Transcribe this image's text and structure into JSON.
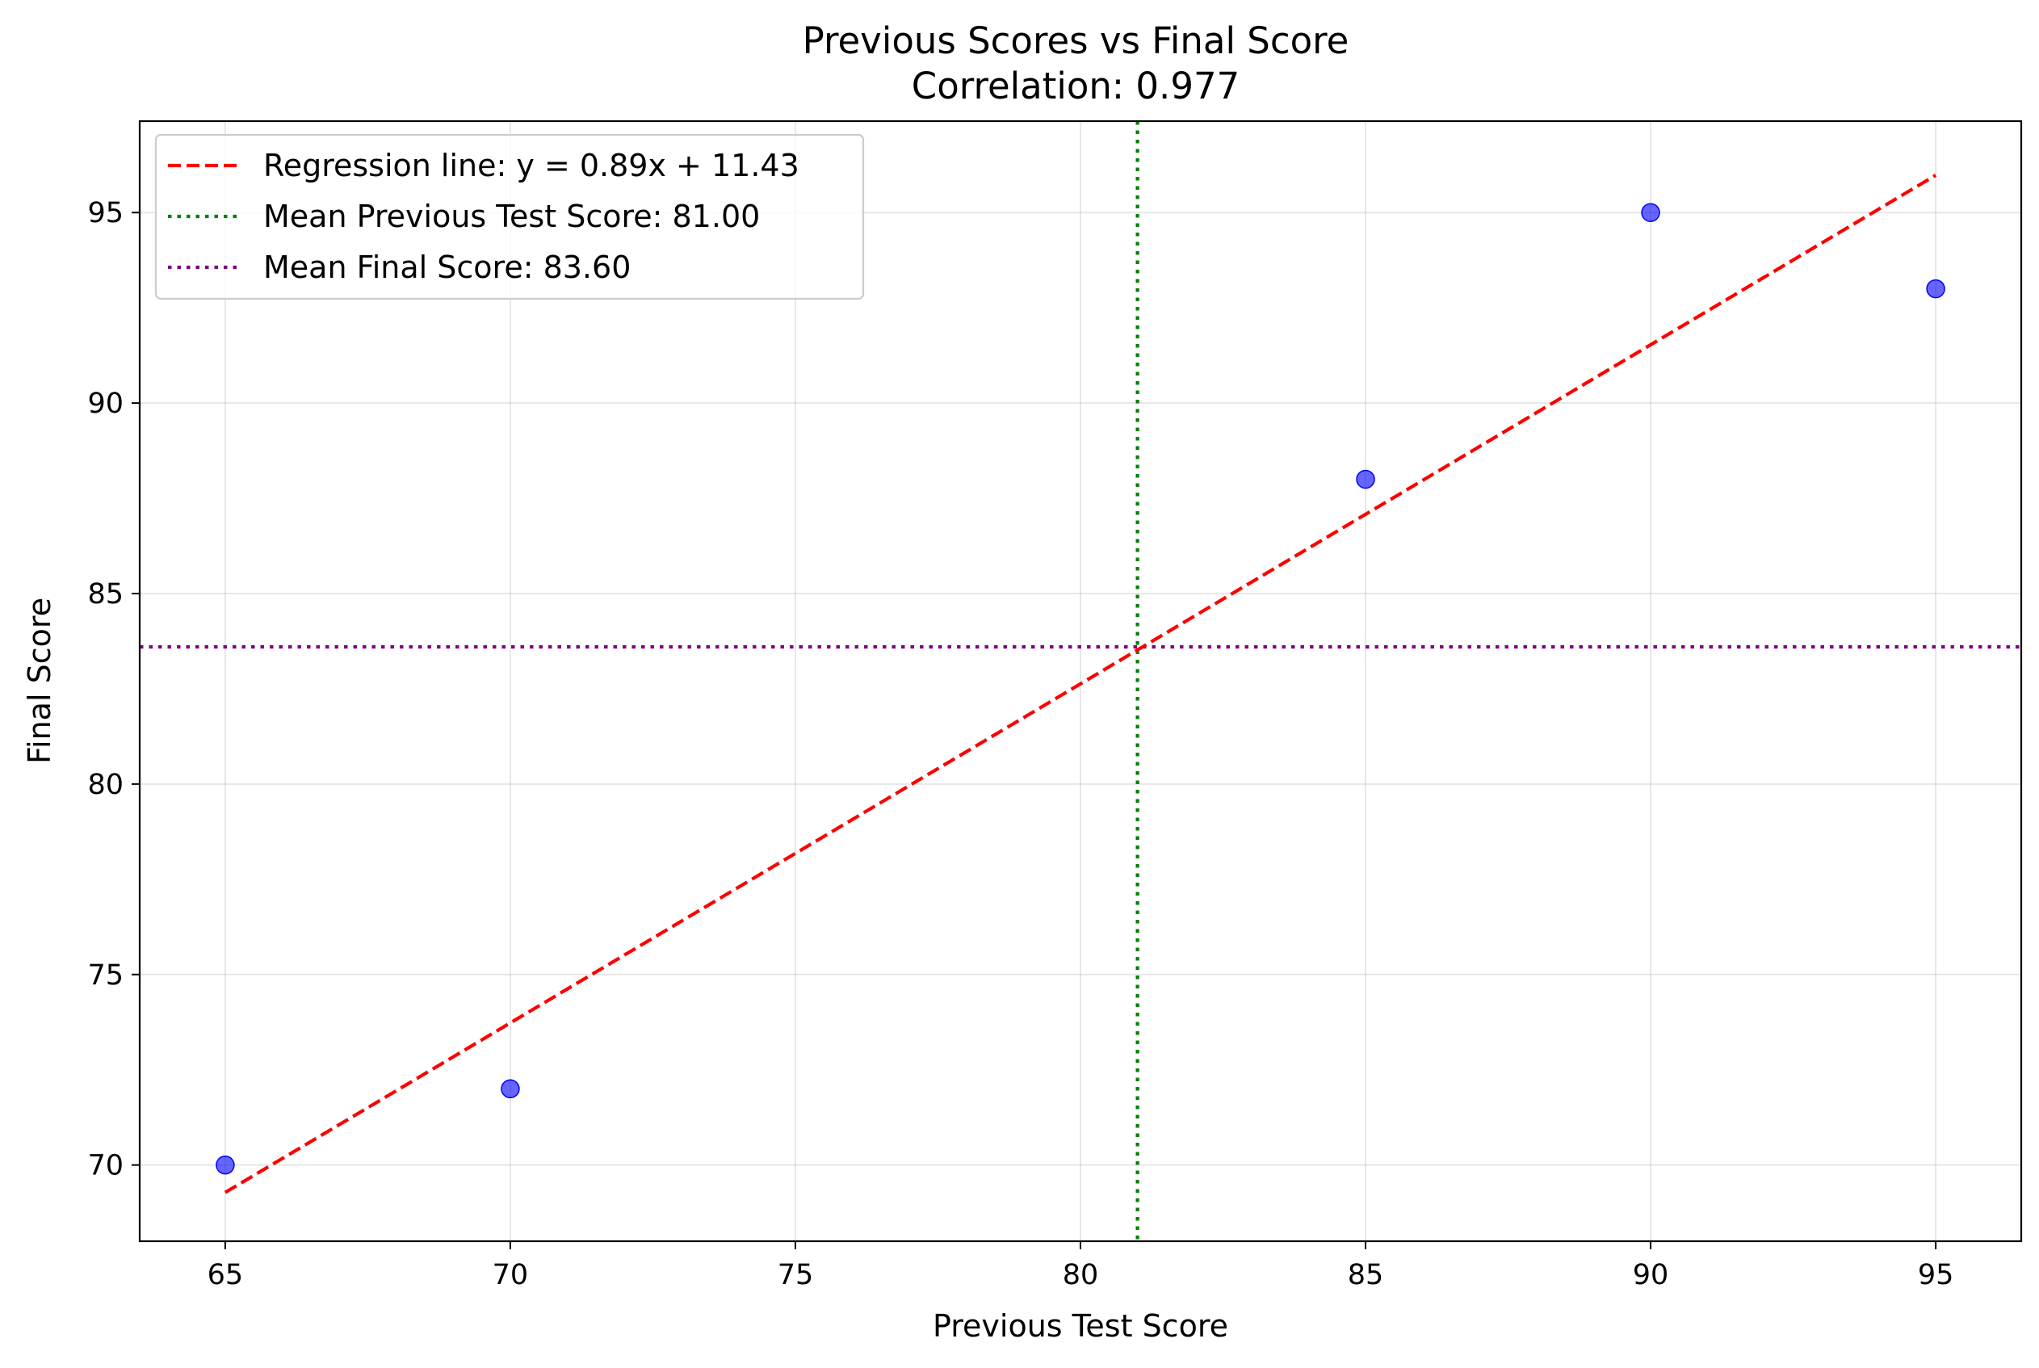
{
  "chart_data": {
    "type": "scatter",
    "title": "Previous Scores vs Final Score",
    "subtitle": "Correlation: 0.977",
    "xlabel": "Previous Test Score",
    "ylabel": "Final Score",
    "xlim": [
      63.5,
      96.5
    ],
    "ylim": [
      68.0,
      97.4
    ],
    "x_ticks": [
      65,
      70,
      75,
      80,
      85,
      90,
      95
    ],
    "y_ticks": [
      70,
      75,
      80,
      85,
      90,
      95
    ],
    "grid": true,
    "legend_position": "top-left",
    "points": {
      "x": [
        65,
        70,
        85,
        90,
        95
      ],
      "y": [
        70,
        72,
        88,
        95,
        93
      ],
      "color": "#0000ff"
    },
    "regression": {
      "label": "Regression line: y = 0.89x + 11.43",
      "slope": 0.89,
      "intercept": 11.43,
      "x_range": [
        65,
        95
      ],
      "color": "#ff0000",
      "style": "dashed"
    },
    "mean_x": {
      "label": "Mean Previous Test Score: 81.00",
      "value": 81.0,
      "color": "#008000",
      "style": "dotted"
    },
    "mean_y": {
      "label": "Mean Final Score: 83.60",
      "value": 83.6,
      "color": "#800080",
      "style": "dotted"
    },
    "legend": [
      "Regression line: y = 0.89x + 11.43",
      "Mean Previous Test Score: 81.00",
      "Mean Final Score: 83.60"
    ]
  }
}
